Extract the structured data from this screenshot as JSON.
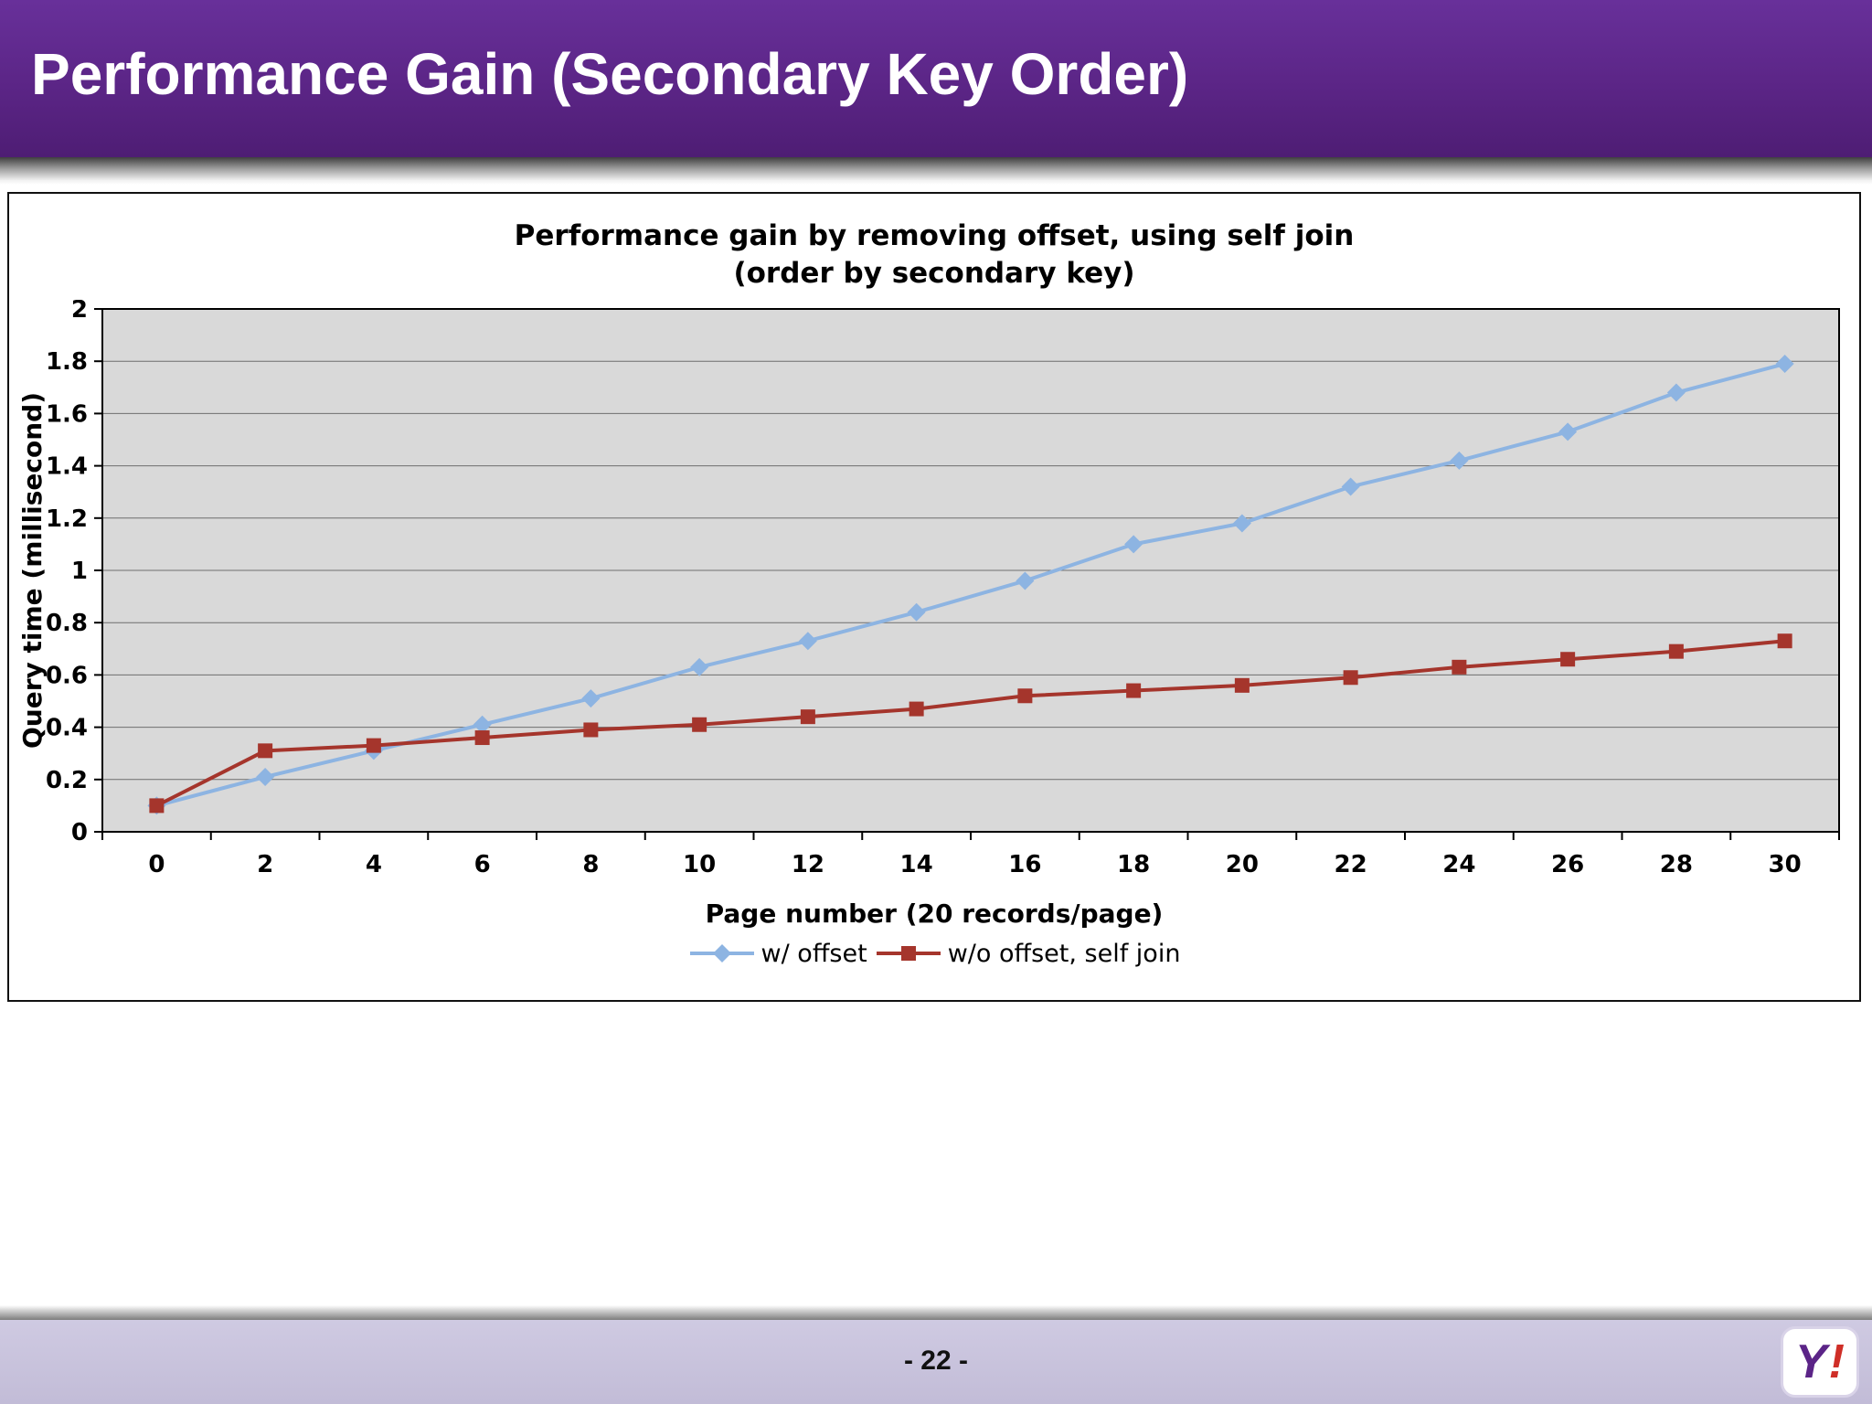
{
  "slide": {
    "title": "Performance Gain (Secondary Key Order)",
    "page_number": "- 22 -",
    "logo_y": "Y",
    "logo_bang": "!"
  },
  "chart_data": {
    "type": "line",
    "title": "Performance gain by removing offset, using self join (order by secondary key)",
    "title_line1": "Performance gain by removing offset, using self join",
    "title_line2": "(order by secondary key)",
    "xlabel": "Page number (20 records/page)",
    "ylabel": "Query time (millisecond)",
    "x": [
      0,
      2,
      4,
      6,
      8,
      10,
      12,
      14,
      16,
      18,
      20,
      22,
      24,
      26,
      28,
      30
    ],
    "ylim": [
      0,
      2
    ],
    "ytick_step": 0.2,
    "grid": "horizontal",
    "legend_position": "bottom",
    "plot_bg": "#d9d9d9",
    "series": [
      {
        "name": "w/ offset",
        "marker": "diamond",
        "color": "#8db4e2",
        "values": [
          0.1,
          0.21,
          0.31,
          0.41,
          0.51,
          0.63,
          0.73,
          0.84,
          0.96,
          1.1,
          1.18,
          1.32,
          1.42,
          1.53,
          1.68,
          1.79
        ]
      },
      {
        "name": "w/o offset, self join",
        "marker": "square",
        "color": "#a5352c",
        "values": [
          0.1,
          0.31,
          0.33,
          0.36,
          0.39,
          0.41,
          0.44,
          0.47,
          0.52,
          0.54,
          0.56,
          0.59,
          0.63,
          0.66,
          0.69,
          0.73
        ]
      }
    ]
  }
}
